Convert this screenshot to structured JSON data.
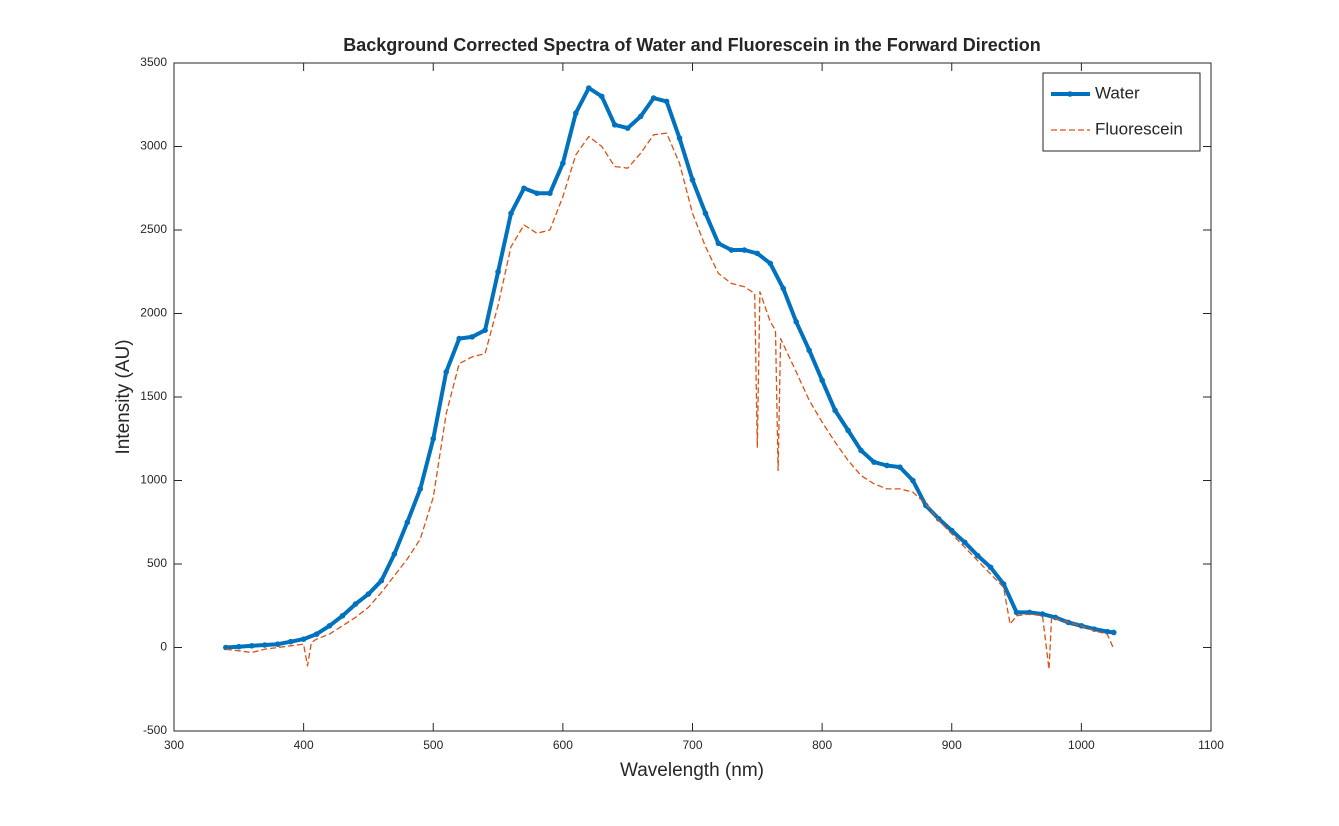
{
  "chart_data": {
    "type": "line",
    "title": "Background Corrected Spectra of Water and Fluorescein in the Forward Direction",
    "xlabel": "Wavelength (nm)",
    "ylabel": "Intensity (AU)",
    "xlim": [
      300,
      1100
    ],
    "xticks": [
      300,
      400,
      500,
      600,
      700,
      800,
      900,
      1000,
      1100
    ],
    "ylim": [
      -500,
      3500
    ],
    "yticks": [
      -500,
      0,
      500,
      1000,
      1500,
      2000,
      2500,
      3000,
      3500
    ],
    "grid": false,
    "legend": "upper right",
    "series": [
      {
        "name": "Water",
        "color": "#0072bd",
        "linestyle": "solid",
        "marker": "circle",
        "x": [
          340,
          350,
          360,
          370,
          380,
          390,
          400,
          410,
          420,
          430,
          440,
          450,
          460,
          470,
          480,
          490,
          500,
          510,
          520,
          530,
          540,
          550,
          560,
          570,
          580,
          590,
          600,
          610,
          620,
          630,
          640,
          650,
          660,
          670,
          680,
          690,
          700,
          710,
          720,
          730,
          740,
          750,
          760,
          770,
          780,
          790,
          800,
          810,
          820,
          830,
          840,
          850,
          860,
          870,
          880,
          890,
          900,
          910,
          920,
          930,
          940,
          950,
          960,
          970,
          980,
          990,
          1000,
          1010,
          1020,
          1025
        ],
        "values": [
          0,
          5,
          10,
          15,
          20,
          35,
          50,
          80,
          130,
          190,
          260,
          320,
          400,
          560,
          750,
          950,
          1250,
          1650,
          1850,
          1860,
          1900,
          2250,
          2600,
          2750,
          2720,
          2720,
          2900,
          3200,
          3350,
          3300,
          3130,
          3110,
          3180,
          3290,
          3270,
          3050,
          2800,
          2600,
          2420,
          2380,
          2380,
          2360,
          2300,
          2150,
          1950,
          1780,
          1600,
          1420,
          1300,
          1180,
          1110,
          1090,
          1080,
          1000,
          850,
          770,
          700,
          630,
          550,
          480,
          380,
          210,
          210,
          200,
          180,
          150,
          130,
          110,
          95,
          90
        ]
      },
      {
        "name": "Fluorescein",
        "color": "#d95319",
        "linestyle": "dashed",
        "marker": "none",
        "x": [
          340,
          350,
          360,
          370,
          380,
          390,
          400,
          403,
          406,
          410,
          420,
          430,
          440,
          450,
          460,
          470,
          480,
          490,
          500,
          510,
          520,
          530,
          540,
          550,
          560,
          570,
          580,
          590,
          600,
          610,
          620,
          630,
          640,
          650,
          660,
          670,
          680,
          690,
          700,
          710,
          720,
          730,
          740,
          748,
          750,
          752,
          760,
          764,
          766,
          768,
          780,
          790,
          800,
          810,
          820,
          830,
          840,
          850,
          860,
          870,
          880,
          890,
          900,
          910,
          920,
          930,
          940,
          945,
          950,
          960,
          970,
          975,
          977,
          990,
          1000,
          1010,
          1020,
          1025
        ],
        "values": [
          -10,
          -20,
          -30,
          -10,
          0,
          10,
          20,
          -110,
          30,
          50,
          80,
          130,
          180,
          240,
          330,
          430,
          530,
          650,
          900,
          1400,
          1700,
          1740,
          1760,
          2050,
          2400,
          2530,
          2480,
          2500,
          2700,
          2950,
          3060,
          3000,
          2880,
          2870,
          2960,
          3070,
          3080,
          2900,
          2600,
          2400,
          2240,
          2180,
          2160,
          2120,
          1200,
          2130,
          1950,
          1900,
          1060,
          1850,
          1650,
          1480,
          1350,
          1230,
          1120,
          1030,
          980,
          950,
          950,
          930,
          860,
          760,
          680,
          600,
          520,
          440,
          360,
          140,
          190,
          200,
          190,
          -130,
          180,
          150,
          130,
          100,
          80,
          -10
        ]
      }
    ]
  }
}
